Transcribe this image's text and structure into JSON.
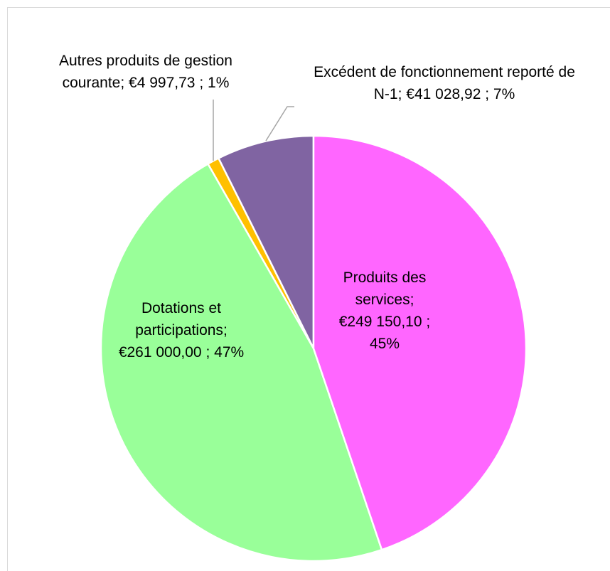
{
  "chart_data": {
    "type": "pie",
    "categories": [
      "Produits des services",
      "Dotations et participations",
      "Autres produits de gestion courante",
      "Excédent de fonctionnement reporté de N-1"
    ],
    "values": [
      249150.1,
      261000.0,
      4997.73,
      41028.92
    ],
    "value_labels": [
      "€249 150,10",
      "€261 000,00",
      "€4 997,73",
      "€41 028,92"
    ],
    "percent_labels": [
      "45%",
      "47%",
      "1%",
      "7%"
    ],
    "label_separator": ";",
    "colors": [
      "#ff66ff",
      "#99ff99",
      "#ffc000",
      "#8064a2"
    ]
  }
}
